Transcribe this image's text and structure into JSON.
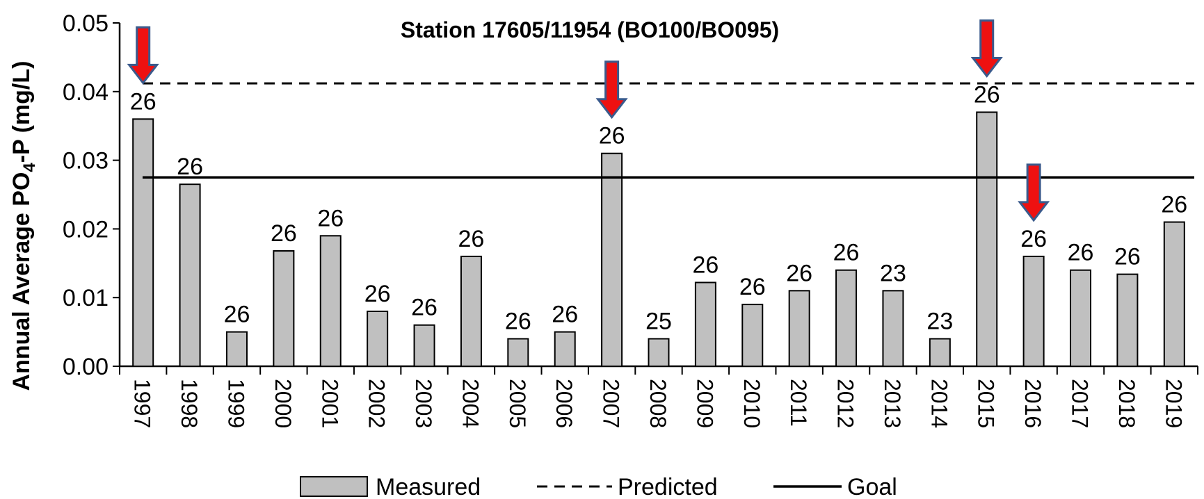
{
  "chart_data": {
    "type": "bar",
    "title": "Station 17605/11954 (BO100/BO095)",
    "ylabel_prefix": "Annual Average PO",
    "ylabel_sub": "4",
    "ylabel_suffix": "-P (mg/L)",
    "xlabel": "",
    "ylim": [
      0,
      0.05
    ],
    "yticks": [
      "0.00",
      "0.01",
      "0.02",
      "0.03",
      "0.04",
      "0.05"
    ],
    "ytick_values": [
      0,
      0.01,
      0.02,
      0.03,
      0.04,
      0.05
    ],
    "categories": [
      "1997",
      "1998",
      "1999",
      "2000",
      "2001",
      "2002",
      "2003",
      "2004",
      "2005",
      "2006",
      "2007",
      "2008",
      "2009",
      "2010",
      "2011",
      "2012",
      "2013",
      "2014",
      "2015",
      "2016",
      "2017",
      "2018",
      "2019"
    ],
    "series": [
      {
        "name": "Measured",
        "values": [
          0.036,
          0.0265,
          0.005,
          0.0168,
          0.019,
          0.008,
          0.006,
          0.016,
          0.004,
          0.005,
          0.031,
          0.004,
          0.0122,
          0.009,
          0.011,
          0.014,
          0.011,
          0.004,
          0.037,
          0.016,
          0.014,
          0.0134,
          0.021
        ],
        "color": "#c0c0c0"
      }
    ],
    "sample_counts": [
      "26",
      "26",
      "26",
      "26",
      "26",
      "26",
      "26",
      "26",
      "26",
      "26",
      "26",
      "25",
      "26",
      "26",
      "26",
      "26",
      "23",
      "23",
      "26",
      "26",
      "26",
      "26",
      "26"
    ],
    "reference_lines": [
      {
        "name": "Predicted",
        "value": 0.0412,
        "style": "dashed"
      },
      {
        "name": "Goal",
        "value": 0.0275,
        "style": "solid"
      }
    ],
    "event_arrows": [
      "1997",
      "2007",
      "2015",
      "2016"
    ],
    "arrow_color": "#ee1111",
    "arrow_outline": "#3a5a8c",
    "legend": {
      "position": "bottom",
      "items": [
        {
          "label": "Measured",
          "kind": "bar"
        },
        {
          "label": "Predicted",
          "kind": "dashed"
        },
        {
          "label": "Goal",
          "kind": "solid"
        }
      ]
    },
    "grid": false
  }
}
